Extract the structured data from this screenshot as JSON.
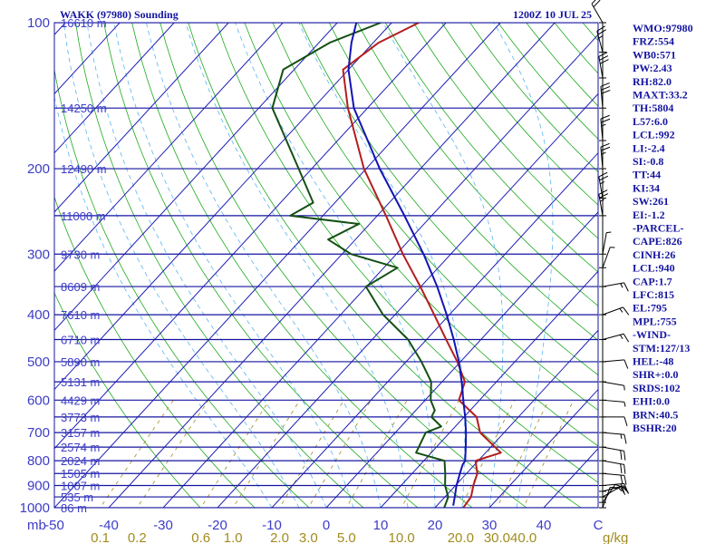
{
  "header": {
    "left_title": "WAKK (97980) Sounding",
    "right_title": "1200Z 10 JUL 25"
  },
  "axes": {
    "pressure_unit": "mb",
    "mixing_ratio_unit": "g/kg"
  },
  "chart_data": {
    "type": "line",
    "title": "WAKK (97980) Sounding",
    "subtitle": "1200Z 10 JUL 25",
    "x_axis": {
      "quantity": "temperature",
      "unit": "C",
      "range": [
        -50,
        50
      ],
      "ticks": [
        "-50",
        "-40",
        "-30",
        "-20",
        "-10",
        "0",
        "10",
        "20",
        "30",
        "40",
        "C"
      ]
    },
    "y_axis": {
      "quantity": "pressure",
      "unit": "mb",
      "scale": "log",
      "range": [
        1000,
        100
      ],
      "ticks": [
        100,
        200,
        300,
        400,
        500,
        600,
        700,
        800,
        900,
        1000
      ]
    },
    "height_labels": [
      {
        "p": 100,
        "label": "16610 m"
      },
      {
        "p": 150,
        "label": "14250 m"
      },
      {
        "p": 200,
        "label": "12490 m"
      },
      {
        "p": 250,
        "label": "11000 m"
      },
      {
        "p": 300,
        "label": "9730 m"
      },
      {
        "p": 350,
        "label": "8609 m"
      },
      {
        "p": 400,
        "label": "7610 m"
      },
      {
        "p": 450,
        "label": "6710 m"
      },
      {
        "p": 500,
        "label": "5890 m"
      },
      {
        "p": 550,
        "label": "5131 m"
      },
      {
        "p": 600,
        "label": "4429 m"
      },
      {
        "p": 650,
        "label": "3773 m"
      },
      {
        "p": 700,
        "label": "3157 m"
      },
      {
        "p": 750,
        "label": "2574 m"
      },
      {
        "p": 800,
        "label": "2024 m"
      },
      {
        "p": 850,
        "label": "1505 m"
      },
      {
        "p": 900,
        "label": "1007 m"
      },
      {
        "p": 950,
        "label": "535 m"
      },
      {
        "p": 1000,
        "label": "86 m"
      }
    ],
    "mixing_ratio_labels": [
      "0.1",
      "0.2",
      "0.6",
      "1.0",
      "2.0",
      "3.0",
      "5.0",
      "10.0",
      "20.0",
      "30.0",
      "40.0"
    ],
    "mixing_ratio_values": [
      0.1,
      0.2,
      0.6,
      1.0,
      2.0,
      3.0,
      5.0,
      10.0,
      20.0,
      30.0,
      40.0
    ],
    "dry_adiabats_theta_k": [
      250,
      260,
      270,
      280,
      290,
      300,
      310,
      320,
      330,
      340,
      350,
      360,
      370,
      380,
      390,
      400,
      410,
      420,
      430,
      440,
      450,
      460,
      470,
      480,
      490,
      500,
      510,
      520,
      530,
      540
    ],
    "moist_adiabats_start_c": [
      -10,
      -5,
      0,
      5,
      10,
      15,
      20,
      25,
      30,
      35
    ],
    "series": [
      {
        "key": "temperature",
        "color": "#b41e1e",
        "points": [
          [
            1000,
            25.2
          ],
          [
            950,
            24.8
          ],
          [
            900,
            23.3
          ],
          [
            850,
            22.0
          ],
          [
            800,
            19.5
          ],
          [
            770,
            22.8
          ],
          [
            700,
            15.6
          ],
          [
            650,
            12.3
          ],
          [
            600,
            6.2
          ],
          [
            550,
            4.2
          ],
          [
            500,
            -0.6
          ],
          [
            450,
            -6.4
          ],
          [
            400,
            -12.8
          ],
          [
            350,
            -20.1
          ],
          [
            300,
            -28.8
          ],
          [
            250,
            -38.4
          ],
          [
            200,
            -50.4
          ],
          [
            150,
            -63.6
          ],
          [
            125,
            -71.0
          ],
          [
            110,
            -69.0
          ],
          [
            100,
            -65.0
          ]
        ]
      },
      {
        "key": "dewpoint",
        "color": "#145014",
        "points": [
          [
            1000,
            21.7
          ],
          [
            950,
            20.6
          ],
          [
            900,
            18.1
          ],
          [
            850,
            16.1
          ],
          [
            800,
            13.8
          ],
          [
            770,
            7.2
          ],
          [
            700,
            5.6
          ],
          [
            680,
            7.4
          ],
          [
            650,
            4.0
          ],
          [
            630,
            3.5
          ],
          [
            600,
            1.0
          ],
          [
            550,
            -2.0
          ],
          [
            500,
            -7.2
          ],
          [
            450,
            -13.4
          ],
          [
            400,
            -22.2
          ],
          [
            350,
            -30.1
          ],
          [
            320,
            -27.5
          ],
          [
            300,
            -38.3
          ],
          [
            280,
            -45.0
          ],
          [
            260,
            -42.0
          ],
          [
            250,
            -56.0
          ],
          [
            235,
            -54.0
          ],
          [
            200,
            -62.4
          ],
          [
            150,
            -77.5
          ],
          [
            125,
            -82.0
          ],
          [
            110,
            -78.0
          ],
          [
            100,
            -72.0
          ]
        ]
      },
      {
        "key": "parcel",
        "color": "#1414b4",
        "points": [
          [
            990,
            23.0
          ],
          [
            940,
            21.5
          ],
          [
            900,
            20.2
          ],
          [
            850,
            18.8
          ],
          [
            815,
            17.8
          ],
          [
            800,
            17.6
          ],
          [
            750,
            15.4
          ],
          [
            700,
            13.0
          ],
          [
            650,
            10.2
          ],
          [
            600,
            7.0
          ],
          [
            550,
            3.6
          ],
          [
            500,
            -0.3
          ],
          [
            450,
            -5.0
          ],
          [
            400,
            -10.5
          ],
          [
            350,
            -17.0
          ],
          [
            300,
            -25.0
          ],
          [
            250,
            -35.0
          ],
          [
            200,
            -47.5
          ],
          [
            150,
            -62.5
          ],
          [
            125,
            -70.0
          ],
          [
            110,
            -74.0
          ],
          [
            100,
            -76.5
          ]
        ]
      }
    ],
    "wind_barbs": [
      {
        "p": 1000,
        "dir": 20,
        "spd": 10
      },
      {
        "p": 975,
        "dir": 35,
        "spd": 15
      },
      {
        "p": 950,
        "dir": 60,
        "spd": 15
      },
      {
        "p": 925,
        "dir": 75,
        "spd": 20
      },
      {
        "p": 900,
        "dir": 85,
        "spd": 20
      },
      {
        "p": 850,
        "dir": 95,
        "spd": 20
      },
      {
        "p": 800,
        "dir": 100,
        "spd": 20
      },
      {
        "p": 750,
        "dir": 100,
        "spd": 20
      },
      {
        "p": 700,
        "dir": 95,
        "spd": 15
      },
      {
        "p": 650,
        "dir": 90,
        "spd": 10
      },
      {
        "p": 600,
        "dir": 95,
        "spd": 5
      },
      {
        "p": 550,
        "dir": 100,
        "spd": 5
      },
      {
        "p": 500,
        "dir": 85,
        "spd": 10
      },
      {
        "p": 450,
        "dir": 75,
        "spd": 15
      },
      {
        "p": 400,
        "dir": 70,
        "spd": 15
      },
      {
        "p": 350,
        "dir": 80,
        "spd": 15
      },
      {
        "p": 320,
        "dir": 20,
        "spd": 5
      },
      {
        "p": 300,
        "dir": 10,
        "spd": 5
      },
      {
        "p": 250,
        "dir": 350,
        "spd": 25
      },
      {
        "p": 230,
        "dir": 350,
        "spd": 25
      },
      {
        "p": 200,
        "dir": 355,
        "spd": 25
      },
      {
        "p": 175,
        "dir": 355,
        "spd": 25
      },
      {
        "p": 150,
        "dir": 355,
        "spd": 30
      },
      {
        "p": 130,
        "dir": 350,
        "spd": 30
      },
      {
        "p": 115,
        "dir": 345,
        "spd": 25
      },
      {
        "p": 100,
        "dir": 330,
        "spd": 20
      }
    ]
  },
  "indices": [
    "WMO:97980",
    "FRZ:554",
    "WB0:571",
    "PW:2.43",
    "RH:82.0",
    "MAXT:33.2",
    "TH:5804",
    "L57:6.0",
    "LCL:992",
    "LI:-2.4",
    "SI:-0.8",
    "TT:44",
    "KI:34",
    "SW:261",
    "EI:-1.2",
    "-PARCEL-",
    "CAPE:826",
    "CINH:26",
    "LCL:940",
    "CAP:1.7",
    "LFC:815",
    "EL:795",
    "MPL:755",
    "-WIND-",
    "STM:127/13",
    "HEL:-48",
    "SHR+:0.0",
    "SRDS:102",
    "EHI:0.0",
    "BRN:40.5",
    "BSHR:20"
  ],
  "colors": {
    "isobar": "#1414a0",
    "isotherm": "#1e1eb4",
    "dry_adiabat": "#1eaa1e",
    "moist_adiabat": "#5ab4f0",
    "mixing_ratio": "#a08c1e",
    "label_blue": "#3c3cc8",
    "label_gold": "#a08c1e",
    "barb": "#000000"
  }
}
